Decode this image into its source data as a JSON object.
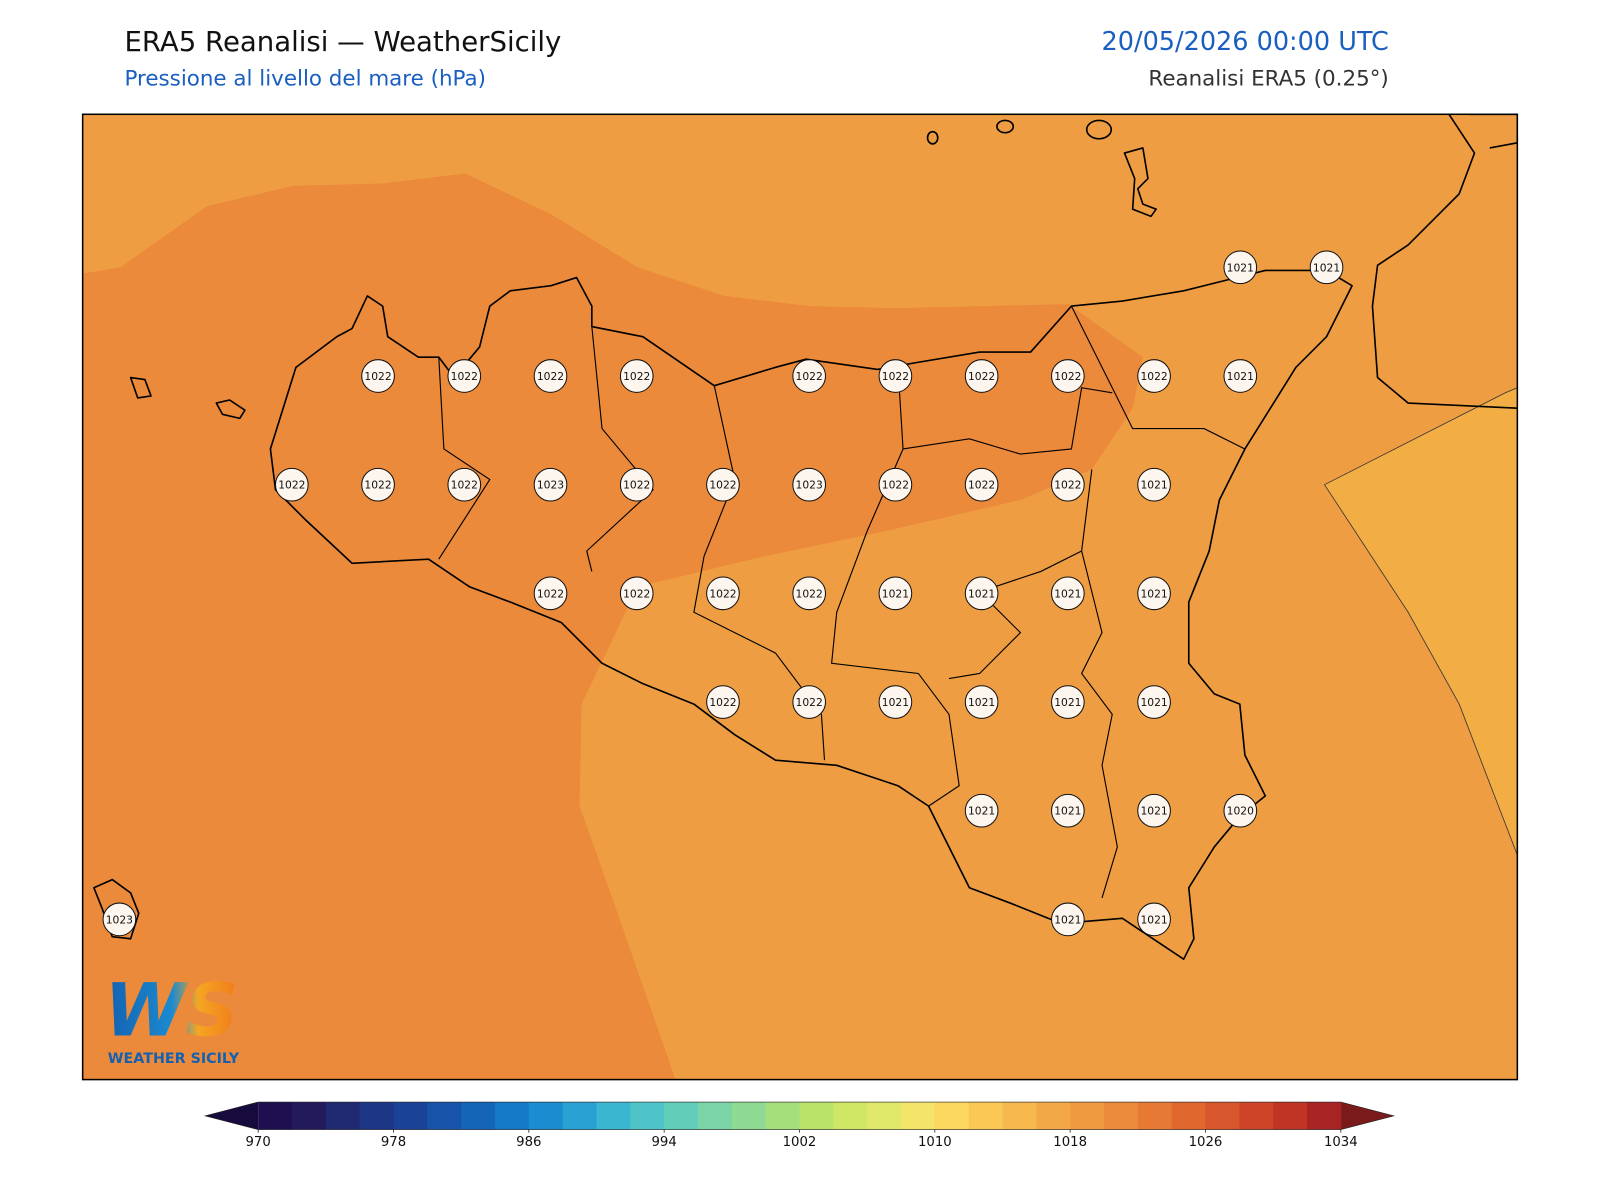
{
  "header": {
    "title": "ERA5 Reanalisi — WeatherSicily",
    "subtitle": "Pressione al livello del mare (hPa)",
    "valid_time": "20/05/2026 00:00 UTC",
    "source": "Reanalisi ERA5 (0.25°)"
  },
  "map": {
    "stations": [
      1021,
      1021,
      1022,
      1022,
      1022,
      1022,
      1022,
      1022,
      1022,
      1022,
      1022,
      1021,
      1022,
      1022,
      1022,
      1023,
      1022,
      1022,
      1023,
      1022,
      1022,
      1022,
      1021,
      1022,
      1022,
      1022,
      1022,
      1021,
      1021,
      1021,
      1021,
      1022,
      1022,
      1021,
      1021,
      1021,
      1021,
      1021,
      1021,
      1021,
      1020,
      1023,
      1021,
      1021
    ]
  },
  "colorbar": {
    "ticks": [
      970,
      978,
      986,
      994,
      1002,
      1010,
      1018,
      1026,
      1034
    ],
    "colors": [
      "#1e1050",
      "#221a5a",
      "#1f2a70",
      "#1d3585",
      "#1a4398",
      "#1753a8",
      "#1464b7",
      "#127ac6",
      "#1a8ccf",
      "#2aa1d3",
      "#3bb6d1",
      "#4ec4c8",
      "#62cdb8",
      "#7ad4a6",
      "#8fda92",
      "#a5df7c",
      "#bae369",
      "#cfe765",
      "#e0e86a",
      "#f3e56a",
      "#fcd860",
      "#fbc855",
      "#f7b84d",
      "#f3a847",
      "#ef9a41",
      "#eb8b3b",
      "#e67a35",
      "#e0682f",
      "#d8562b",
      "#cd4429",
      "#c03426",
      "#a82424"
    ],
    "under_color": "#170a3c",
    "over_color": "#7a1a1a"
  },
  "logo": {
    "mark": "WS",
    "name": "WEATHER SICILY"
  }
}
